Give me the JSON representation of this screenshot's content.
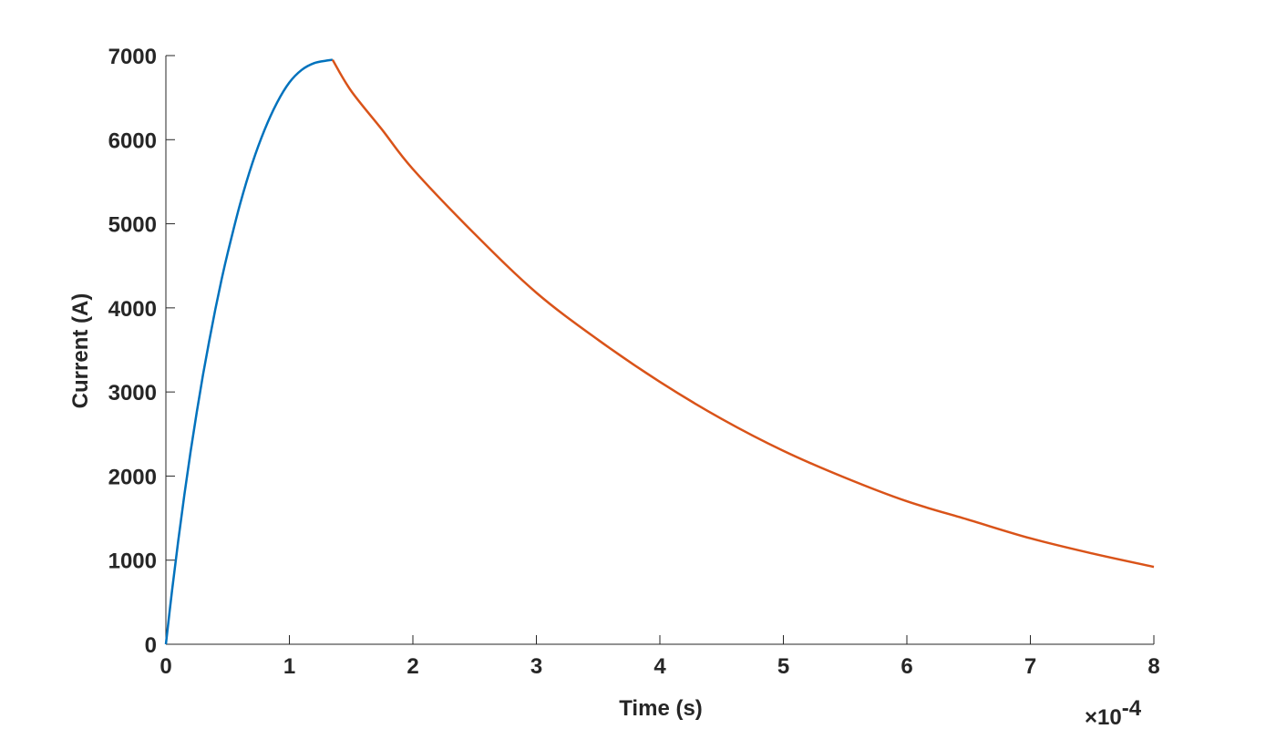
{
  "chart_data": {
    "type": "line",
    "title": "",
    "xlabel": "Time (s)",
    "ylabel": "Current (A)",
    "x_exponent_label": "×10",
    "x_exponent_power": "-4",
    "x_scale_factor": 0.0001,
    "xlim": [
      0,
      0.0008
    ],
    "ylim": [
      0,
      7000
    ],
    "x_ticks": [
      0,
      1,
      2,
      3,
      4,
      5,
      6,
      7,
      8
    ],
    "y_ticks": [
      0,
      1000,
      2000,
      3000,
      4000,
      5000,
      6000,
      7000
    ],
    "grid": false,
    "legend": "none",
    "series": [
      {
        "color": "#0072BD",
        "x": [
          0,
          5e-06,
          1e-05,
          1.5e-05,
          2e-05,
          2.5e-05,
          3e-05,
          3.5e-05,
          4e-05,
          4.5e-05,
          5e-05,
          6e-05,
          7e-05,
          8e-05,
          9e-05,
          0.0001,
          0.00011,
          0.00012,
          0.00013,
          0.000135
        ],
        "y": [
          0,
          640,
          1230,
          1780,
          2290,
          2760,
          3200,
          3600,
          3980,
          4330,
          4650,
          5230,
          5720,
          6120,
          6440,
          6680,
          6830,
          6910,
          6940,
          6950
        ]
      },
      {
        "color": "#D95319",
        "x": [
          0.000135,
          0.00015,
          0.000175,
          0.0002,
          0.00025,
          0.0003,
          0.00035,
          0.0004,
          0.00045,
          0.0005,
          0.00055,
          0.0006,
          0.00065,
          0.0007,
          0.00075,
          0.0008
        ],
        "y": [
          6950,
          6580,
          6120,
          5650,
          4880,
          4180,
          3620,
          3120,
          2680,
          2300,
          1980,
          1700,
          1480,
          1260,
          1080,
          920
        ]
      }
    ]
  }
}
